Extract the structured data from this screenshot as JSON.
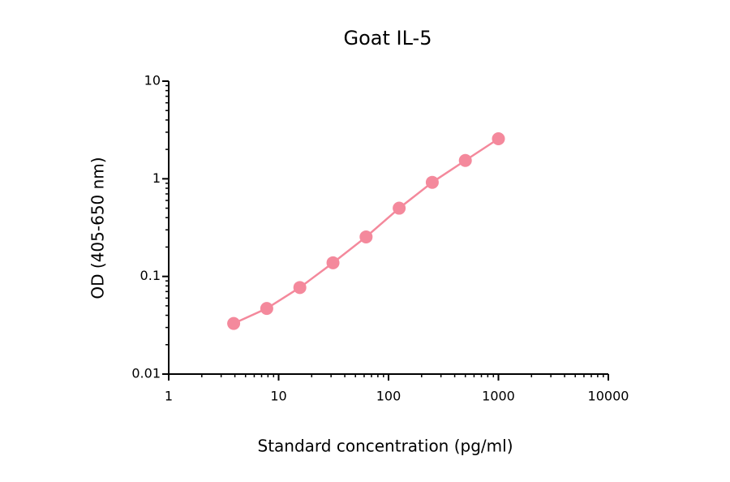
{
  "chart_data": {
    "type": "line",
    "title": "Goat IL-5",
    "x_label": "Standard concentration (pg/ml)",
    "y_label": "OD (405-650 nm)",
    "x": [
      3.9,
      7.8,
      15.6,
      31.25,
      62.5,
      125,
      250,
      500,
      1000
    ],
    "series": [
      {
        "name": "Goat IL-5",
        "color": "#f4899c",
        "values": [
          0.033,
          0.047,
          0.077,
          0.138,
          0.254,
          0.5,
          0.92,
          1.54,
          2.57
        ]
      }
    ],
    "xlim": [
      1,
      10000
    ],
    "xticks": [
      1,
      10,
      100,
      1000,
      10000
    ],
    "ylim": [
      0.01,
      10
    ],
    "yticks": [
      0.01,
      0.1,
      1,
      10
    ],
    "xscale": "log",
    "yscale": "log",
    "grid": false
  }
}
